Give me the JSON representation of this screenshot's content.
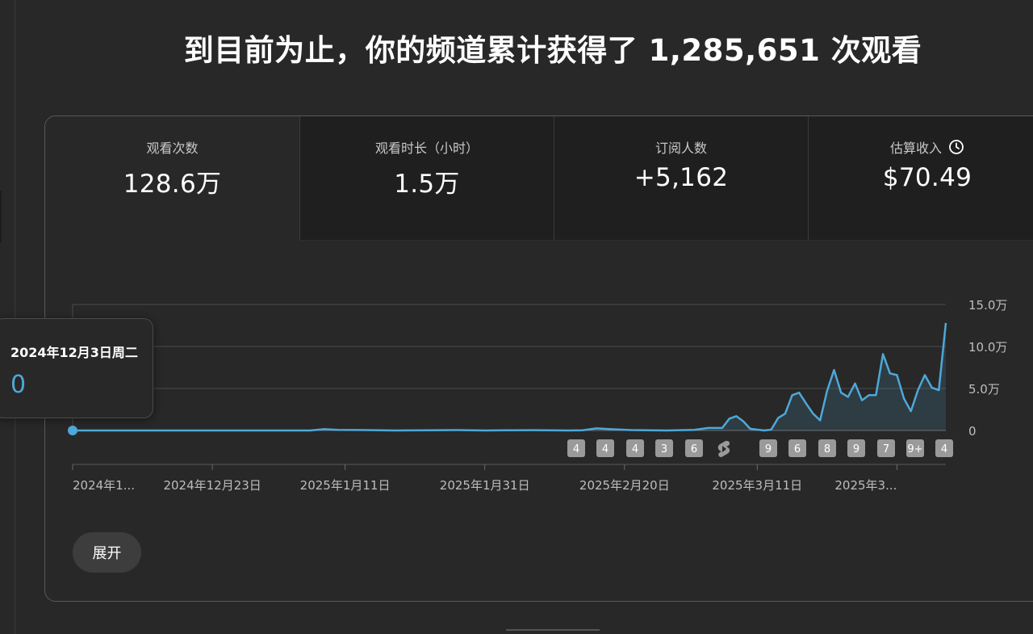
{
  "headline": "到目前为止，你的频道累计获得了 1,285,651 次观看",
  "metrics": [
    {
      "label": "观看次数",
      "value": "128.6万"
    },
    {
      "label": "观看时长（小时）",
      "value": "1.5万"
    },
    {
      "label": "订阅人数",
      "value": "+5,162"
    },
    {
      "label": "估算收入",
      "value": "$70.49",
      "icon": "clock-icon"
    }
  ],
  "tooltip": {
    "date": "2024年12月3日周二",
    "value": "0"
  },
  "expand_label": "展开",
  "colors": {
    "accent": "#4ea8d8",
    "background": "#282828",
    "badge": "#9a9a9a"
  },
  "chart_data": {
    "type": "area",
    "ylim": [
      0,
      150000
    ],
    "y_ticks": [
      {
        "value": 150000,
        "label": "15.0万"
      },
      {
        "value": 100000,
        "label": "10.0万"
      },
      {
        "value": 50000,
        "label": "5.0万"
      },
      {
        "value": 0,
        "label": "0"
      }
    ],
    "x_ticks": [
      {
        "date": "2024-12-03",
        "label": "2024年1..."
      },
      {
        "date": "2024-12-23",
        "label": "2024年12月23日"
      },
      {
        "date": "2025-01-11",
        "label": "2025年1月11日"
      },
      {
        "date": "2025-01-31",
        "label": "2025年1月31日"
      },
      {
        "date": "2025-02-20",
        "label": "2025年2月20日"
      },
      {
        "date": "2025-03-11",
        "label": "2025年3月11日"
      },
      {
        "date": "2025-03-31",
        "label": "2025年3..."
      }
    ],
    "series": [
      {
        "points": [
          [
            "2024-12-03",
            0
          ],
          [
            "2024-12-20",
            0
          ],
          [
            "2025-01-06",
            0
          ],
          [
            "2025-01-08",
            1500
          ],
          [
            "2025-01-10",
            800
          ],
          [
            "2025-01-14",
            500
          ],
          [
            "2025-01-18",
            0
          ],
          [
            "2025-01-23",
            300
          ],
          [
            "2025-01-27",
            500
          ],
          [
            "2025-01-31",
            0
          ],
          [
            "2025-02-03",
            200
          ],
          [
            "2025-02-07",
            400
          ],
          [
            "2025-02-12",
            0
          ],
          [
            "2025-02-14",
            200
          ],
          [
            "2025-02-16",
            2500
          ],
          [
            "2025-02-18",
            1500
          ],
          [
            "2025-02-21",
            500
          ],
          [
            "2025-02-26",
            0
          ],
          [
            "2025-03-02",
            800
          ],
          [
            "2025-03-04",
            3000
          ],
          [
            "2025-03-06",
            3000
          ],
          [
            "2025-03-07",
            14000
          ],
          [
            "2025-03-08",
            17000
          ],
          [
            "2025-03-09",
            11000
          ],
          [
            "2025-03-10",
            2000
          ],
          [
            "2025-03-12",
            0
          ],
          [
            "2025-03-13",
            1000
          ],
          [
            "2025-03-14",
            15000
          ],
          [
            "2025-03-15",
            20000
          ],
          [
            "2025-03-16",
            42000
          ],
          [
            "2025-03-17",
            45000
          ],
          [
            "2025-03-18",
            32000
          ],
          [
            "2025-03-19",
            20000
          ],
          [
            "2025-03-20",
            12000
          ],
          [
            "2025-03-21",
            47000
          ],
          [
            "2025-03-22",
            72000
          ],
          [
            "2025-03-23",
            45000
          ],
          [
            "2025-03-24",
            40000
          ],
          [
            "2025-03-25",
            56000
          ],
          [
            "2025-03-26",
            36000
          ],
          [
            "2025-03-27",
            42000
          ],
          [
            "2025-03-28",
            42000
          ],
          [
            "2025-03-29",
            91000
          ],
          [
            "2025-03-30",
            68000
          ],
          [
            "2025-03-31",
            66000
          ],
          [
            "2025-04-01",
            38000
          ],
          [
            "2025-04-02",
            23000
          ],
          [
            "2025-04-03",
            48000
          ],
          [
            "2025-04-04",
            66000
          ],
          [
            "2025-04-05",
            51000
          ],
          [
            "2025-04-06",
            48000
          ],
          [
            "2025-04-07",
            128000
          ]
        ]
      }
    ],
    "event_markers": [
      {
        "date": "2025-02-07",
        "label": "4"
      },
      {
        "date": "2025-02-09",
        "label": "4"
      },
      {
        "date": "2025-02-11",
        "label": "4"
      },
      {
        "date": "2025-02-13",
        "label": "3"
      },
      {
        "date": "2025-02-15",
        "label": "6"
      },
      {
        "date": "2025-02-17",
        "icon": "shorts-icon"
      },
      {
        "date": "2025-03-09",
        "label": "9"
      },
      {
        "date": "2025-03-11",
        "label": "6"
      },
      {
        "date": "2025-03-13",
        "label": "8"
      },
      {
        "date": "2025-03-15",
        "label": "9"
      },
      {
        "date": "2025-03-17",
        "label": "7"
      },
      {
        "date": "2025-03-19",
        "label": "9+"
      },
      {
        "date": "2025-03-21",
        "label": "4"
      }
    ]
  }
}
